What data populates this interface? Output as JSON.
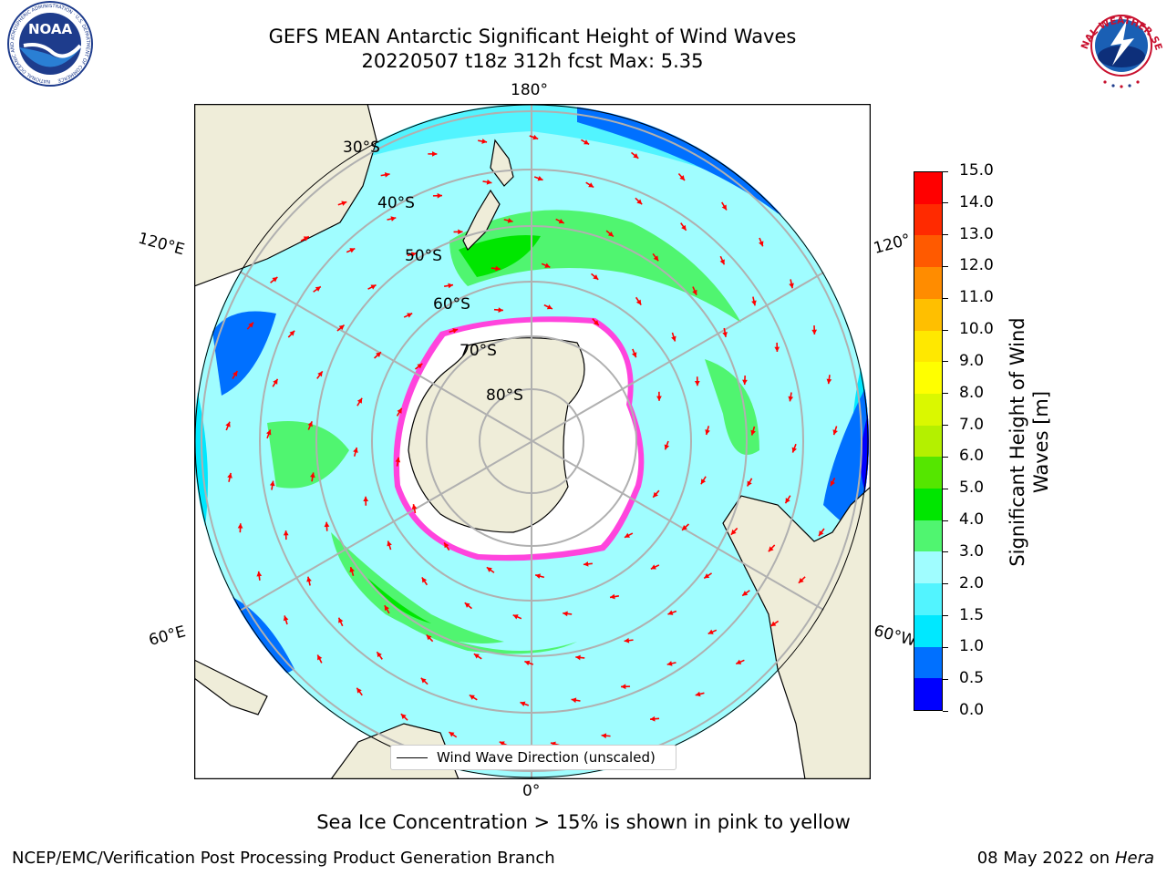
{
  "header": {
    "title_line1": "GEFS MEAN Antarctic Significant Height of Wind Waves",
    "title_line2": "20220507 t18z 312h fcst   Max: 5.35"
  },
  "logos": {
    "noaa_text": "NOAA",
    "noaa_ring_text": "NATIONAL OCEANIC AND ATMOSPHERIC ADMINISTRATION · U.S. DEPARTMENT OF COMMERCE",
    "nws_ring_text": "NATIONAL WEATHER SERVICE"
  },
  "map": {
    "projection": "south-polar-stereographic",
    "longitude_labels": {
      "top": "180°",
      "bottom": "0°",
      "left_upper": "120°E",
      "left_lower": "60°E",
      "right_upper": "120°",
      "right_lower": "60°W"
    },
    "latitude_labels": [
      "30°S",
      "40°S",
      "50°S",
      "60°S",
      "70°S",
      "80°S"
    ],
    "legend_label": "Wind Wave Direction (unscaled)",
    "colors": {
      "land": "#efedd9",
      "coast": "#000000",
      "grid": "#b0b0b0",
      "arrow": "#ff0000",
      "ice_edge": "#ff44dd",
      "ice_core": "#ffffff"
    }
  },
  "colorbar": {
    "title": "Significant Height of Wind Waves [m]",
    "tick_labels": [
      "0.0",
      "0.5",
      "1.0",
      "1.5",
      "2.0",
      "3.0",
      "4.0",
      "5.0",
      "6.0",
      "7.0",
      "8.0",
      "9.0",
      "10.0",
      "11.0",
      "12.0",
      "13.0",
      "14.0",
      "15.0"
    ],
    "colors": [
      "#0000ff",
      "#0070ff",
      "#00e8ff",
      "#52f4ff",
      "#a0fdff",
      "#50f570",
      "#00e600",
      "#55e600",
      "#b4f000",
      "#daf800",
      "#ffff00",
      "#ffe800",
      "#ffbf00",
      "#ff8c00",
      "#ff5a00",
      "#ff2a00",
      "#ff0000"
    ]
  },
  "notes": {
    "sea_ice": "Sea Ice Concentration > 15% is shown in pink to yellow",
    "footer_left": "NCEP/EMC/Verification Post Processing Product Generation Branch",
    "footer_date": "08 May 2022 on",
    "footer_host": "Hera"
  }
}
